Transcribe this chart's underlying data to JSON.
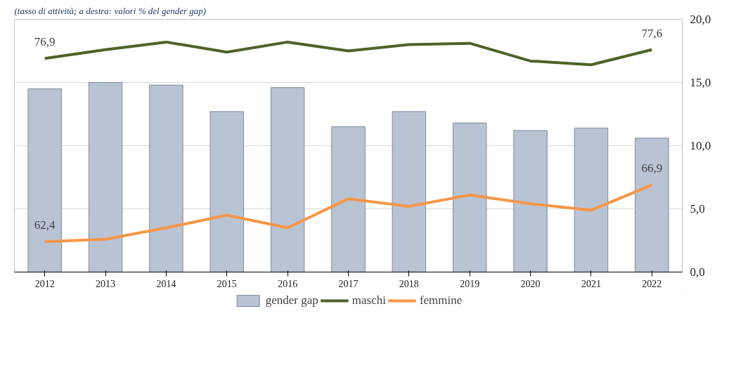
{
  "chart_data": {
    "type": "bar",
    "subtitle": "(tasso di attività; a destra: valori % del gender gap)",
    "categories": [
      "2012",
      "2013",
      "2014",
      "2015",
      "2016",
      "2017",
      "2018",
      "2019",
      "2020",
      "2021",
      "2022"
    ],
    "ylim": [
      60,
      80
    ],
    "y2lim": [
      0,
      20
    ],
    "y2ticks": [
      {
        "value": 0,
        "label": "0,0"
      },
      {
        "value": 5,
        "label": "5,0"
      },
      {
        "value": 10,
        "label": "10,0"
      },
      {
        "value": 15,
        "label": "15,0"
      },
      {
        "value": 20,
        "label": "20,0"
      }
    ],
    "tick_labels": [
      "x",
      "y2"
    ],
    "grid": "y2",
    "legend": "bottom",
    "series": [
      {
        "name": "gender gap",
        "axis": "y2",
        "color": "#b8c4d4",
        "values": [
          14.5,
          15.0,
          14.8,
          12.7,
          14.6,
          11.5,
          12.7,
          11.8,
          11.2,
          11.4,
          10.6
        ]
      },
      {
        "name": "maschi",
        "type": "line",
        "color": "#4f6228",
        "values": [
          76.9,
          77.6,
          78.2,
          77.4,
          78.2,
          77.5,
          78.0,
          78.1,
          76.7,
          76.4,
          77.6
        ],
        "value_labels": [
          "76,9",
          null,
          null,
          null,
          null,
          null,
          null,
          null,
          null,
          null,
          "77,6"
        ]
      },
      {
        "name": "femmine",
        "type": "line",
        "color": "#f79646",
        "values": [
          62.4,
          62.6,
          63.5,
          64.5,
          63.5,
          65.8,
          65.2,
          66.1,
          65.4,
          64.9,
          66.9
        ],
        "value_labels": [
          "62,4",
          null,
          null,
          null,
          null,
          null,
          null,
          null,
          null,
          null,
          "66,9"
        ]
      }
    ]
  }
}
